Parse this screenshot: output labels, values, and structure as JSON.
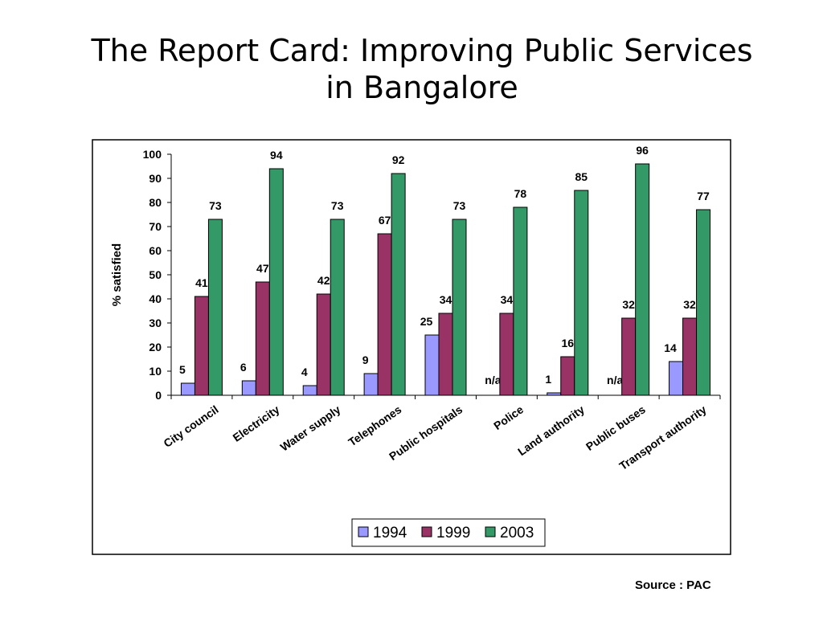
{
  "slide": {
    "title_line1": "The Report Card:  Improving Public Services",
    "title_line2": "in Bangalore",
    "source": "Source : PAC"
  },
  "colors": {
    "1994": "#9999ff",
    "1999": "#993366",
    "2003": "#339966",
    "bar_stroke": "#000000",
    "frame": "#000000"
  },
  "chart_data": {
    "type": "bar",
    "title": "",
    "xlabel": "",
    "ylabel": "% satisfied",
    "ylim": [
      0,
      100
    ],
    "yticks": [
      0,
      10,
      20,
      30,
      40,
      50,
      60,
      70,
      80,
      90,
      100
    ],
    "grid": false,
    "legend_position": "bottom",
    "categories": [
      "City council",
      "Electricity",
      "Water supply",
      "Telephones",
      "Public hospitals",
      "Police",
      "Land authority",
      "Public buses",
      "Transport authority"
    ],
    "series": [
      {
        "name": "1994",
        "values": [
          5,
          6,
          4,
          9,
          25,
          null,
          1,
          null,
          14
        ],
        "labels": [
          "5",
          "6",
          "4",
          "9",
          "25",
          "n/a",
          "1",
          "n/a",
          "14"
        ]
      },
      {
        "name": "1999",
        "values": [
          41,
          47,
          42,
          67,
          34,
          34,
          16,
          32,
          32
        ],
        "labels": [
          "41",
          "47",
          "42",
          "67",
          "34",
          "34",
          "16",
          "32",
          "32"
        ]
      },
      {
        "name": "2003",
        "values": [
          73,
          94,
          73,
          92,
          73,
          78,
          85,
          96,
          77
        ],
        "labels": [
          "73",
          "94",
          "73",
          "92",
          "73",
          "78",
          "85",
          "96",
          "77"
        ]
      }
    ]
  }
}
